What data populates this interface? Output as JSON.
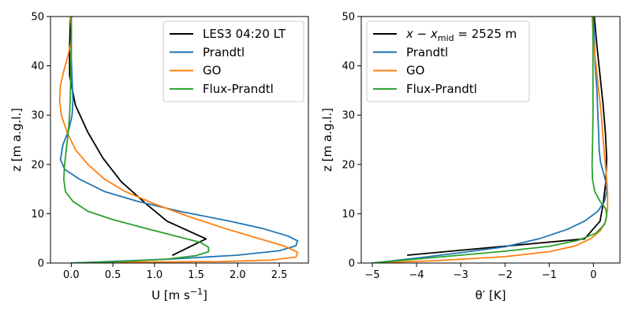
{
  "chart_data": [
    {
      "type": "line",
      "xlabel": "U [m s⁻¹]",
      "ylabel": "z [m a.g.l.]",
      "xlim": [
        -0.25,
        2.85
      ],
      "ylim": [
        0,
        50
      ],
      "xticks": [
        0.0,
        0.5,
        1.0,
        1.5,
        2.0,
        2.5
      ],
      "xtick_labels": [
        "0.0",
        "0.5",
        "1.0",
        "1.5",
        "2.0",
        "2.5"
      ],
      "yticks": [
        0,
        10,
        20,
        30,
        40,
        50
      ],
      "ytick_labels": [
        "0",
        "10",
        "20",
        "30",
        "40",
        "50"
      ],
      "legend_position": "top-right",
      "grid": false,
      "series": [
        {
          "name": "LES3 04:20 LT",
          "color": "#000000",
          "points": [
            [
              1.22,
              1.6
            ],
            [
              1.62,
              4.9
            ],
            [
              1.15,
              8.5
            ],
            [
              0.9,
              12.0
            ],
            [
              0.6,
              16.5
            ],
            [
              0.38,
              21.3
            ],
            [
              0.2,
              26.5
            ],
            [
              0.05,
              32.0
            ],
            [
              -0.02,
              38.0
            ],
            [
              -0.02,
              44.0
            ],
            [
              -0.01,
              50.0
            ]
          ]
        },
        {
          "name": "Prandtl",
          "color": "#1f77b4",
          "points": [
            [
              0.0,
              0.0
            ],
            [
              1.2,
              0.8
            ],
            [
              2.0,
              1.6
            ],
            [
              2.5,
              2.5
            ],
            [
              2.7,
              3.5
            ],
            [
              2.72,
              4.5
            ],
            [
              2.6,
              5.5
            ],
            [
              2.3,
              7.0
            ],
            [
              1.9,
              8.5
            ],
            [
              1.3,
              10.5
            ],
            [
              0.8,
              12.5
            ],
            [
              0.4,
              14.5
            ],
            [
              0.1,
              17.0
            ],
            [
              -0.08,
              19.0
            ],
            [
              -0.13,
              21.0
            ],
            [
              -0.1,
              24.0
            ],
            [
              -0.03,
              27.0
            ],
            [
              0.01,
              30.0
            ],
            [
              0.02,
              33.0
            ],
            [
              0.01,
              37.0
            ],
            [
              0.0,
              42.0
            ],
            [
              0.0,
              50.0
            ]
          ]
        },
        {
          "name": "GO",
          "color": "#ff7f0e",
          "points": [
            [
              0.0,
              0.0
            ],
            [
              0.8,
              0.2
            ],
            [
              1.8,
              0.3
            ],
            [
              2.4,
              0.6
            ],
            [
              2.7,
              1.2
            ],
            [
              2.72,
              2.2
            ],
            [
              2.55,
              3.5
            ],
            [
              2.25,
              5.0
            ],
            [
              1.85,
              7.0
            ],
            [
              1.4,
              9.5
            ],
            [
              1.0,
              12.0
            ],
            [
              0.65,
              14.5
            ],
            [
              0.4,
              17.0
            ],
            [
              0.2,
              20.0
            ],
            [
              0.05,
              23.0
            ],
            [
              -0.05,
              26.5
            ],
            [
              -0.12,
              30.0
            ],
            [
              -0.14,
              33.0
            ],
            [
              -0.13,
              36.0
            ],
            [
              -0.09,
              39.0
            ],
            [
              -0.04,
              42.0
            ],
            [
              0.0,
              45.0
            ],
            [
              0.0,
              47.5
            ],
            [
              -0.01,
              50.0
            ]
          ]
        },
        {
          "name": "Flux-Prandtl",
          "color": "#2ca02c",
          "points": [
            [
              0.0,
              0.0
            ],
            [
              0.6,
              0.3
            ],
            [
              1.15,
              0.8
            ],
            [
              1.5,
              1.5
            ],
            [
              1.65,
              2.3
            ],
            [
              1.65,
              3.2
            ],
            [
              1.55,
              4.2
            ],
            [
              1.25,
              5.5
            ],
            [
              0.9,
              7.0
            ],
            [
              0.5,
              8.8
            ],
            [
              0.2,
              10.5
            ],
            [
              0.02,
              12.5
            ],
            [
              -0.07,
              14.5
            ],
            [
              -0.09,
              17.0
            ],
            [
              -0.08,
              20.0
            ],
            [
              -0.06,
              23.0
            ],
            [
              -0.04,
              26.0
            ],
            [
              -0.02,
              30.0
            ],
            [
              -0.01,
              35.0
            ],
            [
              0.0,
              42.0
            ],
            [
              0.0,
              50.0
            ]
          ]
        }
      ]
    },
    {
      "type": "line",
      "xlabel": "θ′ [K]",
      "ylabel": "z [m a.g.l.]",
      "xlim": [
        -5.25,
        0.6
      ],
      "ylim": [
        0,
        50
      ],
      "xticks": [
        -5,
        -4,
        -3,
        -2,
        -1,
        0
      ],
      "xtick_labels": [
        "−5",
        "−4",
        "−3",
        "−2",
        "−1",
        "0"
      ],
      "yticks": [
        0,
        10,
        20,
        30,
        40,
        50
      ],
      "ytick_labels": [
        "0",
        "10",
        "20",
        "30",
        "40",
        "50"
      ],
      "legend_position": "top-left",
      "grid": false,
      "series": [
        {
          "name": "x − x_mid = 2525 m",
          "name_prefix": "x − x",
          "name_subscript": "mid",
          "name_suffix": " = 2525 m",
          "color": "#000000",
          "points": [
            [
              -4.2,
              1.6
            ],
            [
              -0.2,
              4.9
            ],
            [
              0.15,
              8.5
            ],
            [
              0.22,
              12.0
            ],
            [
              0.28,
              16.5
            ],
            [
              0.3,
              21.3
            ],
            [
              0.27,
              26.5
            ],
            [
              0.22,
              32.0
            ],
            [
              0.15,
              38.0
            ],
            [
              0.08,
              44.0
            ],
            [
              0.02,
              50.0
            ]
          ]
        },
        {
          "name": "Prandtl",
          "color": "#1f77b4",
          "points": [
            [
              -5.0,
              0.0
            ],
            [
              -4.0,
              1.0
            ],
            [
              -3.0,
              2.1
            ],
            [
              -2.0,
              3.3
            ],
            [
              -1.2,
              5.0
            ],
            [
              -0.6,
              6.8
            ],
            [
              -0.2,
              8.5
            ],
            [
              0.1,
              10.5
            ],
            [
              0.25,
              12.5
            ],
            [
              0.3,
              14.5
            ],
            [
              0.28,
              16.5
            ],
            [
              0.22,
              18.5
            ],
            [
              0.16,
              20.5
            ],
            [
              0.13,
              23.0
            ],
            [
              0.12,
              26.0
            ],
            [
              0.1,
              30.0
            ],
            [
              0.08,
              35.0
            ],
            [
              0.04,
              40.0
            ],
            [
              0.0,
              50.0
            ]
          ]
        },
        {
          "name": "GO",
          "color": "#ff7f0e",
          "points": [
            [
              -5.0,
              0.0
            ],
            [
              -3.5,
              0.5
            ],
            [
              -2.0,
              1.3
            ],
            [
              -1.0,
              2.3
            ],
            [
              -0.4,
              3.5
            ],
            [
              -0.05,
              5.0
            ],
            [
              0.15,
              6.5
            ],
            [
              0.28,
              8.5
            ],
            [
              0.32,
              11.0
            ],
            [
              0.32,
              14.0
            ],
            [
              0.3,
              17.0
            ],
            [
              0.26,
              21.0
            ],
            [
              0.22,
              25.0
            ],
            [
              0.18,
              30.0
            ],
            [
              0.12,
              35.0
            ],
            [
              0.06,
              40.0
            ],
            [
              0.0,
              45.0
            ],
            [
              -0.03,
              50.0
            ]
          ]
        },
        {
          "name": "Flux-Prandtl",
          "color": "#2ca02c",
          "points": [
            [
              -5.0,
              0.0
            ],
            [
              -4.0,
              0.8
            ],
            [
              -3.0,
              1.6
            ],
            [
              -2.0,
              2.4
            ],
            [
              -1.0,
              3.4
            ],
            [
              -0.35,
              4.6
            ],
            [
              0.05,
              6.0
            ],
            [
              0.25,
              7.8
            ],
            [
              0.3,
              9.5
            ],
            [
              0.28,
              11.0
            ],
            [
              0.15,
              12.5
            ],
            [
              0.03,
              14.5
            ],
            [
              -0.02,
              17.0
            ],
            [
              -0.03,
              20.0
            ],
            [
              -0.02,
              24.0
            ],
            [
              -0.01,
              30.0
            ],
            [
              -0.01,
              40.0
            ],
            [
              -0.01,
              50.0
            ]
          ]
        }
      ]
    }
  ]
}
